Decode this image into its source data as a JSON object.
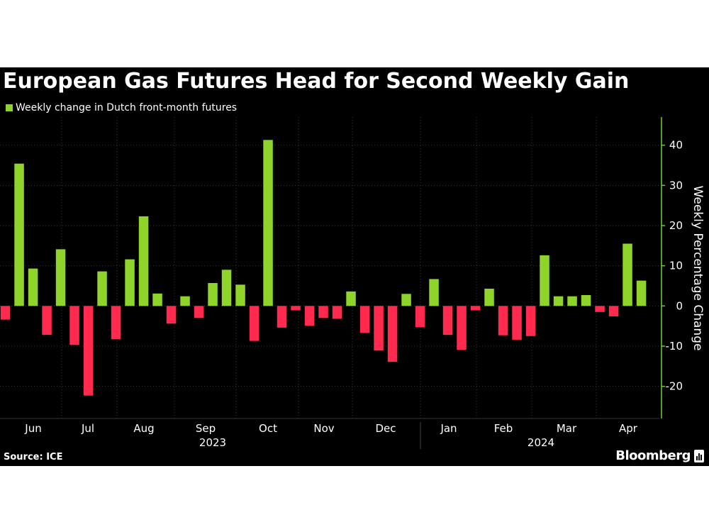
{
  "title": "European Gas Futures Head for Second Weekly Gain",
  "legend": {
    "label": "Weekly change in Dutch front-month futures"
  },
  "footer": {
    "source": "Source: ICE",
    "brand": "Bloomberg"
  },
  "colors": {
    "positive": "#8fd42b",
    "negative": "#ff2a4d",
    "background": "#000000",
    "axis": "#6fcf2a",
    "grid": "#3a3a3a"
  },
  "chart_data": {
    "type": "bar",
    "ylabel": "Weekly Percentage Change",
    "ylim": [
      -28,
      47
    ],
    "yticks": [
      -20,
      -10,
      0,
      10,
      20,
      30,
      40
    ],
    "month_labels": [
      "Jun",
      "Jul",
      "Aug",
      "Sep",
      "Oct",
      "Nov",
      "Dec",
      "Jan",
      "Feb",
      "Mar",
      "Apr"
    ],
    "year_labels": [
      "2023",
      "2024"
    ],
    "legend_position": "top-left",
    "grid": true,
    "series": [
      {
        "name": "Weekly change in Dutch front-month futures",
        "values": [
          -3.4,
          35.4,
          9.3,
          -7.2,
          14.1,
          -9.7,
          -22.3,
          8.6,
          -8.3,
          11.6,
          22.3,
          3.1,
          -4.4,
          2.4,
          -3.0,
          5.7,
          9.0,
          5.3,
          -8.7,
          41.3,
          -5.4,
          -1.1,
          -4.9,
          -3.0,
          -3.2,
          3.6,
          -6.7,
          -11.1,
          -13.9,
          3.0,
          -5.3,
          6.7,
          -7.2,
          -10.9,
          -1.1,
          4.3,
          -7.3,
          -8.4,
          -7.5,
          12.6,
          2.4,
          2.4,
          2.7,
          -1.5,
          -2.6,
          15.5,
          6.3
        ]
      }
    ]
  }
}
